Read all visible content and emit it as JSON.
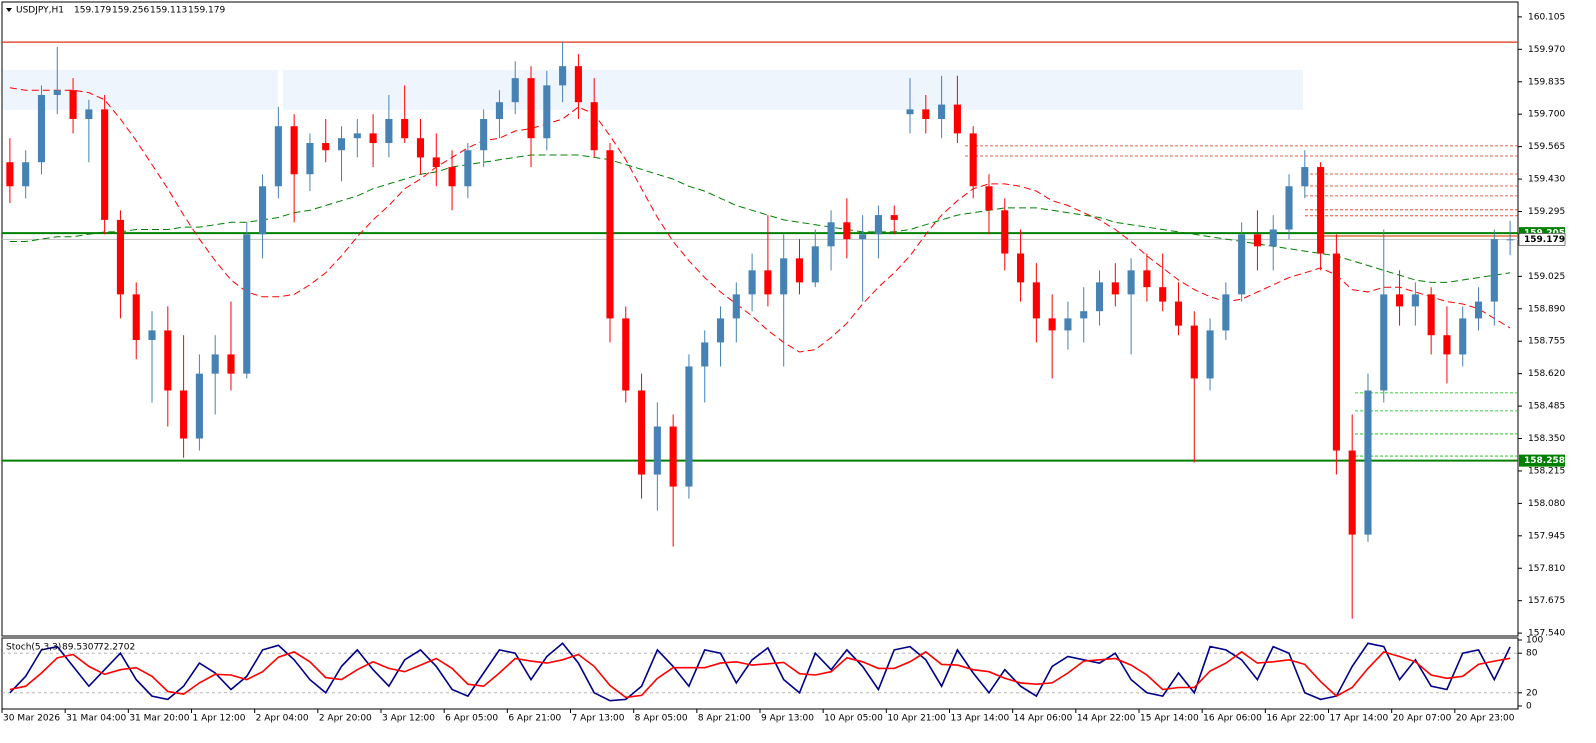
{
  "chart_data": [
    {
      "type": "candlestick",
      "title": "USDJPY,H1",
      "bull_color": "#4682b4",
      "bear_color": "#ff0000",
      "categories": [
        "30 Mar 2026",
        null,
        null,
        null,
        "31 Mar 04:00",
        null,
        null,
        null,
        "31 Mar 20:00",
        null,
        null,
        null,
        "1 Apr 12:00",
        null,
        null,
        null,
        "2 Apr 04:00",
        null,
        null,
        null,
        "2 Apr 20:00",
        null,
        null,
        null,
        "3 Apr 12:00",
        null,
        null,
        null,
        "6 Apr 05:00",
        null,
        null,
        null,
        "6 Apr 21:00",
        null,
        null,
        null,
        "7 Apr 13:00",
        null,
        null,
        null,
        "8 Apr 05:00",
        null,
        null,
        null,
        "8 Apr 21:00",
        null,
        null,
        null,
        "9 Apr 13:00",
        null,
        null,
        null,
        "10 Apr 05:00",
        null,
        null,
        null,
        "10 Apr 21:00",
        null,
        null,
        null,
        "13 Apr 14:00",
        null,
        null,
        null,
        "14 Apr 06:00",
        null,
        null,
        null,
        "14 Apr 22:00",
        null,
        null,
        null,
        "15 Apr 14:00",
        null,
        null,
        null,
        "16 Apr 06:00",
        null,
        null,
        null,
        "16 Apr 22:00",
        null,
        null,
        null,
        "17 Apr 14:00",
        null,
        null,
        null,
        "20 Apr 07:00",
        null,
        null,
        null,
        "20 Apr 23:00",
        null,
        null,
        null
      ],
      "candles": [
        [
          159.5,
          159.6,
          159.33,
          159.4
        ],
        [
          159.4,
          159.55,
          159.35,
          159.5
        ],
        [
          159.5,
          159.82,
          159.45,
          159.78
        ],
        [
          159.78,
          159.98,
          159.7,
          159.8
        ],
        [
          159.8,
          159.85,
          159.62,
          159.68
        ],
        [
          159.68,
          159.76,
          159.5,
          159.72
        ],
        [
          159.72,
          159.78,
          159.2,
          159.26
        ],
        [
          159.26,
          159.3,
          158.85,
          158.95
        ],
        [
          158.95,
          159.0,
          158.68,
          158.76
        ],
        [
          158.76,
          158.88,
          158.5,
          158.8
        ],
        [
          158.8,
          158.9,
          158.4,
          158.55
        ],
        [
          158.55,
          158.78,
          158.27,
          158.35
        ],
        [
          158.35,
          158.7,
          158.3,
          158.62
        ],
        [
          158.62,
          158.78,
          158.45,
          158.7
        ],
        [
          158.7,
          158.92,
          158.55,
          158.62
        ],
        [
          158.62,
          159.25,
          158.6,
          159.2
        ],
        [
          159.2,
          159.45,
          159.1,
          159.4
        ],
        [
          159.4,
          159.73,
          159.35,
          159.65
        ],
        [
          159.65,
          159.7,
          159.25,
          159.45
        ],
        [
          159.45,
          159.62,
          159.38,
          159.58
        ],
        [
          159.58,
          159.68,
          159.5,
          159.55
        ],
        [
          159.55,
          159.65,
          159.42,
          159.6
        ],
        [
          159.6,
          159.68,
          159.52,
          159.62
        ],
        [
          159.62,
          159.7,
          159.48,
          159.58
        ],
        [
          159.58,
          159.78,
          159.52,
          159.68
        ],
        [
          159.68,
          159.82,
          159.58,
          159.6
        ],
        [
          159.6,
          159.68,
          159.45,
          159.52
        ],
        [
          159.52,
          159.62,
          159.4,
          159.48
        ],
        [
          159.48,
          159.55,
          159.3,
          159.4
        ],
        [
          159.4,
          159.58,
          159.35,
          159.55
        ],
        [
          159.55,
          159.72,
          159.48,
          159.68
        ],
        [
          159.68,
          159.8,
          159.6,
          159.75
        ],
        [
          159.75,
          159.92,
          159.7,
          159.85
        ],
        [
          159.85,
          159.9,
          159.48,
          159.6
        ],
        [
          159.6,
          159.88,
          159.55,
          159.82
        ],
        [
          159.82,
          160.0,
          159.75,
          159.9
        ],
        [
          159.9,
          159.95,
          159.68,
          159.75
        ],
        [
          159.75,
          159.85,
          159.52,
          159.55
        ],
        [
          159.55,
          159.58,
          158.75,
          158.85
        ],
        [
          158.85,
          158.9,
          158.5,
          158.55
        ],
        [
          158.55,
          158.62,
          158.1,
          158.2
        ],
        [
          158.2,
          158.5,
          158.05,
          158.4
        ],
        [
          158.4,
          158.45,
          157.9,
          158.15
        ],
        [
          158.15,
          158.7,
          158.1,
          158.65
        ],
        [
          158.65,
          158.8,
          158.5,
          158.75
        ],
        [
          158.75,
          158.9,
          158.65,
          158.85
        ],
        [
          158.85,
          159.0,
          158.75,
          158.95
        ],
        [
          158.95,
          159.12,
          158.88,
          159.05
        ],
        [
          159.05,
          159.28,
          158.9,
          158.95
        ],
        [
          158.95,
          159.2,
          158.65,
          159.1
        ],
        [
          159.1,
          159.18,
          158.95,
          159.0
        ],
        [
          159.0,
          159.22,
          158.98,
          159.15
        ],
        [
          159.15,
          159.3,
          159.05,
          159.25
        ],
        [
          159.25,
          159.35,
          159.1,
          159.18
        ],
        [
          159.18,
          159.28,
          158.92,
          159.2
        ],
        [
          159.2,
          159.32,
          159.1,
          159.28
        ],
        [
          159.28,
          159.32,
          159.2,
          159.26
        ],
        [
          159.7,
          159.85,
          159.62,
          159.72
        ],
        [
          159.72,
          159.78,
          159.62,
          159.68
        ],
        [
          159.68,
          159.86,
          159.6,
          159.74
        ],
        [
          159.74,
          159.86,
          159.58,
          159.62
        ],
        [
          159.62,
          159.65,
          159.35,
          159.4
        ],
        [
          159.4,
          159.45,
          159.2,
          159.3
        ],
        [
          159.3,
          159.35,
          159.05,
          159.12
        ],
        [
          159.12,
          159.22,
          158.92,
          159.0
        ],
        [
          159.0,
          159.08,
          158.75,
          158.85
        ],
        [
          158.85,
          158.95,
          158.6,
          158.8
        ],
        [
          158.8,
          158.92,
          158.72,
          158.85
        ],
        [
          158.85,
          158.98,
          158.75,
          158.88
        ],
        [
          158.88,
          159.05,
          158.82,
          159.0
        ],
        [
          159.0,
          159.08,
          158.9,
          158.95
        ],
        [
          158.95,
          159.1,
          158.7,
          159.05
        ],
        [
          159.05,
          159.12,
          158.92,
          158.98
        ],
        [
          158.98,
          159.12,
          158.88,
          158.92
        ],
        [
          158.92,
          159.0,
          158.78,
          158.82
        ],
        [
          158.82,
          158.88,
          158.25,
          158.6
        ],
        [
          158.6,
          158.85,
          158.55,
          158.8
        ],
        [
          158.8,
          159.0,
          158.76,
          158.95
        ],
        [
          158.95,
          159.25,
          158.92,
          159.2
        ],
        [
          159.2,
          159.3,
          159.05,
          159.15
        ],
        [
          159.15,
          159.28,
          159.05,
          159.22
        ],
        [
          159.22,
          159.45,
          159.18,
          159.4
        ],
        [
          159.4,
          159.55,
          159.35,
          159.48
        ],
        [
          159.48,
          159.5,
          159.05,
          159.12
        ],
        [
          159.12,
          159.2,
          158.2,
          158.3
        ],
        [
          158.3,
          158.45,
          157.6,
          157.95
        ],
        [
          157.95,
          158.62,
          157.92,
          158.55
        ],
        [
          158.55,
          159.22,
          158.5,
          158.95
        ],
        [
          158.95,
          159.05,
          158.82,
          158.9
        ],
        [
          158.9,
          159.0,
          158.82,
          158.95
        ],
        [
          158.95,
          158.98,
          158.7,
          158.78
        ],
        [
          158.78,
          158.9,
          158.58,
          158.7
        ],
        [
          158.7,
          158.9,
          158.65,
          158.85
        ],
        [
          158.85,
          158.98,
          158.8,
          158.92
        ],
        [
          158.92,
          159.22,
          158.82,
          159.18
        ],
        [
          159.179,
          159.256,
          159.113,
          159.179
        ]
      ],
      "series": [
        {
          "color": "#ff0000",
          "values": [
            159.81,
            159.8,
            159.8,
            159.8,
            159.8,
            159.79,
            159.76,
            159.68,
            159.59,
            159.49,
            159.39,
            159.28,
            159.18,
            159.09,
            159.01,
            158.96,
            158.94,
            158.94,
            158.95,
            158.99,
            159.04,
            159.11,
            159.19,
            159.26,
            159.32,
            159.39,
            159.43,
            159.48,
            159.52,
            159.56,
            159.59,
            159.6,
            159.63,
            159.64,
            159.66,
            159.68,
            159.73,
            159.7,
            159.61,
            159.51,
            159.39,
            159.27,
            159.17,
            159.09,
            159.02,
            158.96,
            158.91,
            158.86,
            158.8,
            158.75,
            158.71,
            158.72,
            158.77,
            158.83,
            158.91,
            158.98,
            159.04,
            159.11,
            159.2,
            159.28,
            159.34,
            159.39,
            159.41,
            159.41,
            159.4,
            159.38,
            159.34,
            159.32,
            159.29,
            159.26,
            159.22,
            159.17,
            159.11,
            159.06,
            159.01,
            158.97,
            158.94,
            158.92,
            158.93,
            158.96,
            158.99,
            159.02,
            159.04,
            159.06,
            159.03,
            158.97,
            158.96,
            158.98,
            158.98,
            158.96,
            158.94,
            158.92,
            158.91,
            158.89,
            158.85,
            158.81
          ]
        },
        {
          "color": "#008000",
          "values": [
            159.17,
            159.17,
            159.18,
            159.19,
            159.19,
            159.2,
            159.21,
            159.21,
            159.22,
            159.22,
            159.22,
            159.23,
            159.23,
            159.24,
            159.25,
            159.25,
            159.26,
            159.27,
            159.29,
            159.3,
            159.32,
            159.34,
            159.36,
            159.39,
            159.41,
            159.43,
            159.45,
            159.46,
            159.48,
            159.49,
            159.5,
            159.51,
            159.52,
            159.53,
            159.53,
            159.53,
            159.53,
            159.52,
            159.51,
            159.49,
            159.47,
            159.45,
            159.43,
            159.4,
            159.38,
            159.35,
            159.32,
            159.3,
            159.28,
            159.26,
            159.25,
            159.24,
            159.23,
            159.22,
            159.21,
            159.21,
            159.21,
            159.22,
            159.24,
            159.26,
            159.28,
            159.29,
            159.3,
            159.31,
            159.31,
            159.31,
            159.3,
            159.29,
            159.28,
            159.27,
            159.25,
            159.24,
            159.23,
            159.22,
            159.21,
            159.2,
            159.19,
            159.18,
            159.17,
            159.16,
            159.15,
            159.14,
            159.13,
            159.12,
            159.11,
            159.09,
            159.07,
            159.05,
            159.03,
            159.01,
            159.0,
            159.0,
            159.01,
            159.02,
            159.03,
            159.04
          ]
        }
      ],
      "zone": [
        159.884,
        159.718
      ],
      "resistance_line": 160.0,
      "price_lines": [
        {
          "value": 159.205,
          "color": "#008000"
        },
        {
          "value": 159.179,
          "color": "#c0c0c0"
        },
        {
          "value": 158.258,
          "color": "#008000"
        }
      ],
      "resistance_levels": [
        159.568,
        159.526,
        159.451,
        159.401,
        159.36,
        159.302,
        159.277
      ],
      "support_levels": [
        158.54,
        158.465,
        158.369,
        158.277
      ],
      "entry_line": 159.193,
      "ylim": [
        157.528,
        160.167
      ],
      "yticks": [
        160.105,
        {
          "value": 159.97,
          "label": "159.970"
        },
        159.835,
        {
          "value": 159.7,
          "label": "159.700"
        },
        159.565,
        {
          "value": 159.43,
          "label": "159.430"
        },
        159.295,
        159.025,
        {
          "value": 158.89,
          "label": "158.890"
        },
        158.755,
        {
          "value": 158.62,
          "label": "158.620"
        },
        158.485,
        {
          "value": 158.35,
          "label": "158.350"
        },
        158.215,
        {
          "value": 158.08,
          "label": "158.080"
        },
        157.945,
        {
          "value": 157.81,
          "label": "157.810"
        },
        157.675,
        {
          "value": 157.54,
          "label": "157.540"
        }
      ]
    },
    {
      "type": "line",
      "title": "Stoch(5,3,3)",
      "series": [
        {
          "color": "#00008b",
          "values": [
            20,
            45,
            85,
            90,
            60,
            30,
            55,
            80,
            40,
            15,
            10,
            30,
            65,
            50,
            25,
            45,
            85,
            92,
            70,
            40,
            20,
            60,
            85,
            55,
            30,
            70,
            85,
            60,
            25,
            15,
            50,
            85,
            80,
            40,
            75,
            95,
            65,
            20,
            8,
            10,
            30,
            85,
            60,
            30,
            85,
            80,
            35,
            70,
            88,
            40,
            20,
            80,
            55,
            85,
            60,
            25,
            85,
            90,
            70,
            30,
            85,
            50,
            20,
            55,
            30,
            15,
            60,
            75,
            70,
            65,
            80,
            40,
            20,
            15,
            50,
            20,
            90,
            85,
            70,
            40,
            90,
            80,
            20,
            10,
            15,
            60,
            95,
            90,
            40,
            70,
            30,
            25,
            80,
            85,
            40,
            89.5307
          ]
        },
        {
          "color": "#ff0000",
          "values": [
            25,
            30,
            50,
            73,
            78,
            60,
            48,
            55,
            58,
            45,
            22,
            18,
            35,
            48,
            47,
            40,
            52,
            74,
            82,
            67,
            43,
            40,
            55,
            67,
            57,
            52,
            62,
            72,
            57,
            33,
            30,
            50,
            72,
            68,
            65,
            70,
            78,
            60,
            31,
            13,
            16,
            42,
            58,
            58,
            58,
            65,
            67,
            62,
            64,
            66,
            49,
            47,
            52,
            73,
            67,
            57,
            57,
            67,
            82,
            63,
            62,
            55,
            52,
            42,
            35,
            33,
            35,
            50,
            68,
            70,
            72,
            62,
            47,
            25,
            28,
            28,
            53,
            65,
            82,
            65,
            67,
            70,
            63,
            37,
            15,
            28,
            57,
            82,
            75,
            67,
            47,
            42,
            45,
            63,
            68,
            72.2702
          ]
        }
      ],
      "levels": [
        80,
        20
      ],
      "ylim": [
        0,
        100
      ],
      "yticks": [
        100,
        80,
        20,
        0
      ]
    }
  ]
}
